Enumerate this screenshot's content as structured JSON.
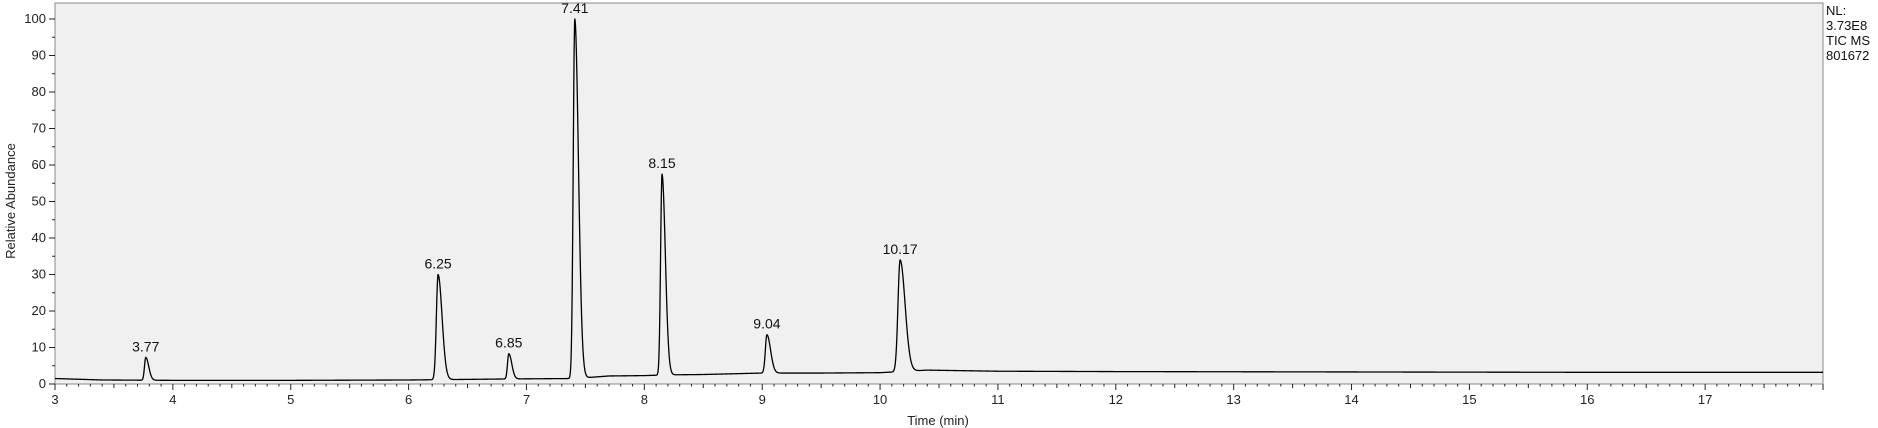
{
  "chart_data": {
    "type": "line",
    "title": "",
    "xlabel": "Time (min)",
    "ylabel": "Relative Abundance",
    "xlim": [
      3.0,
      18.0
    ],
    "ylim": [
      0,
      100
    ],
    "xticks": [
      "3",
      "4",
      "5",
      "6",
      "7",
      "8",
      "9",
      "10",
      "11",
      "12",
      "13",
      "14",
      "15",
      "16",
      "17"
    ],
    "yticks": [
      "0",
      "10",
      "20",
      "30",
      "40",
      "50",
      "60",
      "70",
      "80",
      "90",
      "100"
    ],
    "grid": false,
    "background_color": "#f0f0f0",
    "line_color": "#000000",
    "side_info": [
      "NL:",
      "3.73E8",
      "TIC  MS",
      "801672"
    ],
    "baseline": [
      {
        "x": 3.0,
        "y": 1.5
      },
      {
        "x": 3.4,
        "y": 1.1
      },
      {
        "x": 4.0,
        "y": 1.0
      },
      {
        "x": 5.0,
        "y": 1.0
      },
      {
        "x": 6.0,
        "y": 1.1
      },
      {
        "x": 6.9,
        "y": 1.4
      },
      {
        "x": 7.41,
        "y": 1.5
      },
      {
        "x": 7.7,
        "y": 2.2
      },
      {
        "x": 8.0,
        "y": 2.3
      },
      {
        "x": 8.2,
        "y": 2.5
      },
      {
        "x": 8.5,
        "y": 2.6
      },
      {
        "x": 9.0,
        "y": 3.0
      },
      {
        "x": 9.5,
        "y": 3.0
      },
      {
        "x": 10.0,
        "y": 3.1
      },
      {
        "x": 10.4,
        "y": 3.8
      },
      {
        "x": 11.0,
        "y": 3.5
      },
      {
        "x": 12.0,
        "y": 3.4
      },
      {
        "x": 14.0,
        "y": 3.3
      },
      {
        "x": 16.0,
        "y": 3.2
      },
      {
        "x": 18.0,
        "y": 3.2
      }
    ],
    "peaks": [
      {
        "x": 3.77,
        "y": 7.3,
        "label": "3.77",
        "width": 0.018
      },
      {
        "x": 6.25,
        "y": 30.0,
        "label": "6.25",
        "width": 0.024
      },
      {
        "x": 6.85,
        "y": 8.3,
        "label": "6.85",
        "width": 0.018
      },
      {
        "x": 7.41,
        "y": 100.0,
        "label": "7.41",
        "width": 0.022
      },
      {
        "x": 8.15,
        "y": 57.5,
        "label": "8.15",
        "width": 0.02
      },
      {
        "x": 9.04,
        "y": 13.5,
        "label": "9.04",
        "width": 0.022
      },
      {
        "x": 10.17,
        "y": 34.0,
        "label": "10.17",
        "width": 0.03
      }
    ]
  }
}
